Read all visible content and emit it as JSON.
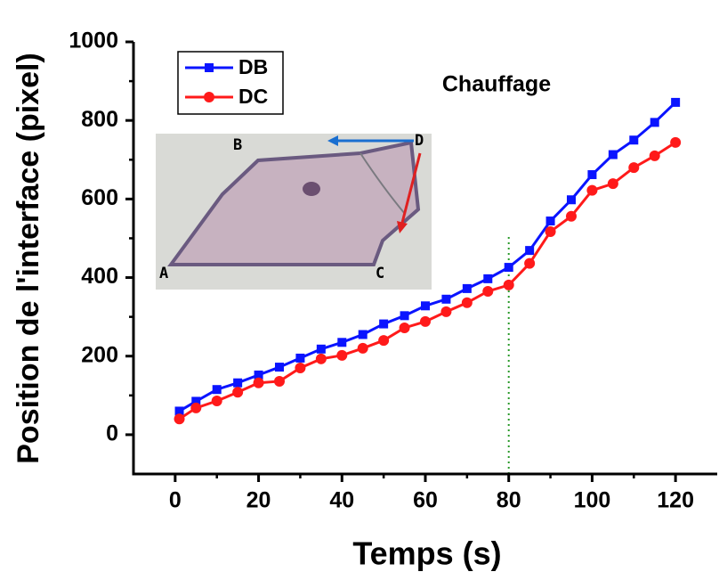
{
  "chart_data": {
    "type": "line",
    "xlabel": "Temps (s)",
    "ylabel": "Position de l'interface (pixel)",
    "annotation": {
      "text": "Chauffage",
      "color": "#ee2222"
    },
    "reference_line": {
      "x": 80,
      "color": "#2a9a2a"
    },
    "inset_labels": [
      "A",
      "B",
      "C",
      "D"
    ],
    "x": [
      1,
      5,
      10,
      15,
      20,
      25,
      30,
      35,
      40,
      45,
      50,
      55,
      60,
      65,
      70,
      75,
      80,
      85,
      90,
      95,
      100,
      105,
      110,
      115,
      120
    ],
    "series": [
      {
        "name": "DB",
        "color": "#0a14ff",
        "marker": "square",
        "values": [
          60,
          85,
          115,
          132,
          152,
          172,
          195,
          218,
          235,
          255,
          282,
          303,
          328,
          345,
          372,
          397,
          426,
          469,
          544,
          598,
          662,
          713,
          750,
          795,
          846
        ]
      },
      {
        "name": "DC",
        "color": "#ff1a1a",
        "marker": "circle",
        "values": [
          40,
          68,
          86,
          108,
          132,
          136,
          170,
          193,
          202,
          220,
          240,
          272,
          288,
          313,
          336,
          365,
          381,
          436,
          517,
          556,
          622,
          639,
          680,
          710,
          744
        ]
      }
    ],
    "xlim": [
      -10,
      130
    ],
    "ylim": [
      -100,
      1000
    ],
    "xticks": [
      0,
      20,
      40,
      60,
      80,
      100,
      120
    ],
    "yticks": [
      0,
      200,
      400,
      600,
      800,
      1000
    ],
    "xminorticks": [
      10,
      30,
      50,
      70,
      90,
      110
    ],
    "yminorticks": [
      100,
      300,
      500,
      700,
      900
    ],
    "legend": "upper left"
  }
}
